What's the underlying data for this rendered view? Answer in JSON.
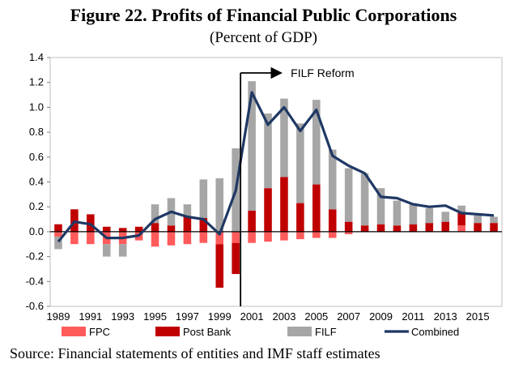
{
  "chart_data": {
    "type": "bar",
    "title": "Figure 22. Profits of Financial Public Corporations",
    "subtitle": "(Percent of GDP)",
    "source": "Source: Financial statements of entities and IMF staff estimates",
    "x": [
      1989,
      1990,
      1991,
      1992,
      1993,
      1994,
      1995,
      1996,
      1997,
      1998,
      1999,
      2000,
      2001,
      2002,
      2003,
      2004,
      2005,
      2006,
      2007,
      2008,
      2009,
      2010,
      2011,
      2012,
      2013,
      2014,
      2015,
      2016
    ],
    "x_tick_labels": [
      "1989",
      "1991",
      "1993",
      "1995",
      "1997",
      "1999",
      "2001",
      "2003",
      "2005",
      "2007",
      "2009",
      "2011",
      "2013",
      "2015"
    ],
    "ylim": [
      -0.6,
      1.4
    ],
    "y_ticks": [
      "1.4",
      "1.2",
      "1.0",
      "0.8",
      "0.6",
      "0.4",
      "0.2",
      "0.0",
      "-0.2",
      "-0.4",
      "-0.6"
    ],
    "stacked": true,
    "series": [
      {
        "name": "FPC",
        "kind": "bar",
        "color": "#ff5b5b",
        "values": [
          -0.04,
          -0.1,
          -0.1,
          -0.1,
          -0.1,
          -0.07,
          -0.12,
          -0.11,
          -0.1,
          -0.09,
          -0.1,
          -0.09,
          -0.09,
          -0.08,
          -0.07,
          -0.06,
          -0.05,
          -0.05,
          -0.02,
          0.0,
          0.0,
          0.0,
          0.0,
          0.0,
          0.0,
          0.05,
          0.0,
          0.0
        ]
      },
      {
        "name": "Post Bank",
        "kind": "bar",
        "color": "#c00000",
        "values": [
          0.06,
          0.18,
          0.14,
          0.04,
          0.03,
          0.04,
          0.07,
          0.05,
          0.12,
          0.11,
          -0.35,
          -0.25,
          0.17,
          0.35,
          0.44,
          0.23,
          0.38,
          0.18,
          0.08,
          0.05,
          0.06,
          0.05,
          0.06,
          0.07,
          0.08,
          0.1,
          0.07,
          0.07
        ]
      },
      {
        "name": "FILF",
        "kind": "bar",
        "color": "#a6a6a6",
        "values": [
          -0.1,
          0.0,
          0.0,
          -0.1,
          -0.1,
          0.0,
          0.15,
          0.22,
          0.1,
          0.31,
          0.43,
          0.67,
          1.04,
          0.6,
          0.63,
          0.64,
          0.68,
          0.48,
          0.43,
          0.42,
          0.29,
          0.2,
          0.17,
          0.12,
          0.08,
          0.06,
          0.06,
          0.05
        ]
      },
      {
        "name": "Combined",
        "kind": "line",
        "color": "#1f3864",
        "values": [
          -0.08,
          0.08,
          0.06,
          -0.05,
          -0.05,
          -0.03,
          0.1,
          0.16,
          0.12,
          0.1,
          -0.02,
          0.33,
          1.12,
          0.86,
          1.0,
          0.81,
          0.98,
          0.61,
          0.53,
          0.47,
          0.28,
          0.27,
          0.22,
          0.2,
          0.21,
          0.15,
          0.14,
          0.13
        ]
      }
    ],
    "annotation": {
      "label": "FILF Reform",
      "year": 2001
    },
    "legend_position": "bottom",
    "grid": false
  }
}
